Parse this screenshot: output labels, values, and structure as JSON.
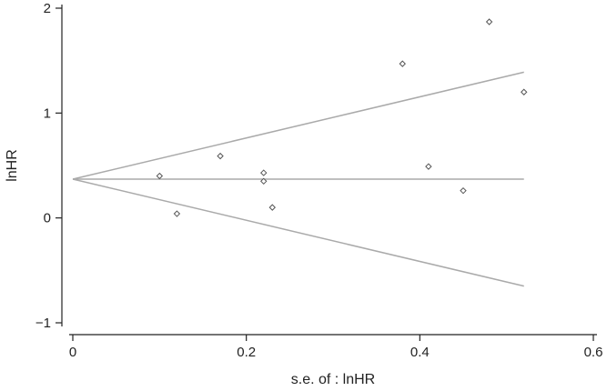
{
  "chart_data": {
    "type": "scatter",
    "title": "",
    "xlabel": "s.e. of : lnHR",
    "ylabel": "lnHR",
    "xlim": [
      0,
      0.6
    ],
    "ylim": [
      -1,
      2
    ],
    "x_ticks": [
      {
        "value": 0,
        "label": "0"
      },
      {
        "value": 0.2,
        "label": "0.2"
      },
      {
        "value": 0.4,
        "label": "0.4"
      },
      {
        "value": 0.6,
        "label": "0.6"
      }
    ],
    "y_ticks": [
      {
        "value": -1,
        "label": "−1"
      },
      {
        "value": 0,
        "label": "0"
      },
      {
        "value": 1,
        "label": "1"
      },
      {
        "value": 2,
        "label": "2"
      }
    ],
    "grid": false,
    "marker": "diamond",
    "point_color": "#555555",
    "line_color": "#aaaaaa",
    "points": [
      {
        "x": 0.1,
        "y": 0.4
      },
      {
        "x": 0.12,
        "y": 0.04
      },
      {
        "x": 0.17,
        "y": 0.59
      },
      {
        "x": 0.22,
        "y": 0.43
      },
      {
        "x": 0.22,
        "y": 0.35
      },
      {
        "x": 0.23,
        "y": 0.1
      },
      {
        "x": 0.38,
        "y": 1.47
      },
      {
        "x": 0.41,
        "y": 0.49
      },
      {
        "x": 0.45,
        "y": 0.26
      },
      {
        "x": 0.48,
        "y": 1.87
      },
      {
        "x": 0.52,
        "y": 1.2
      }
    ],
    "pooled_estimate": 0.37,
    "funnel_limits": {
      "x": [
        0,
        0.52
      ],
      "upper": [
        0.37,
        1.39
      ],
      "lower": [
        0.37,
        -0.65
      ]
    }
  }
}
